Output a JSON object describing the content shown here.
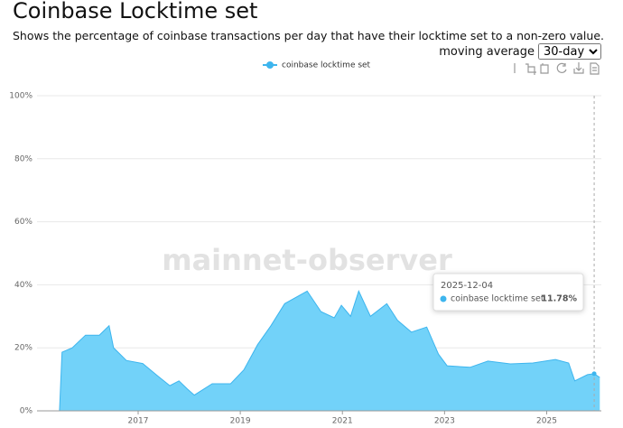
{
  "header": {
    "title": "Coinbase Locktime set",
    "subtitle": "Shows the percentage of coinbase transactions per day that have their locktime set to a non-zero value.",
    "moving_average_label": "moving average",
    "moving_average_value": "30-day"
  },
  "chart_data": {
    "type": "area",
    "watermark": "mainnet-observer",
    "x": [
      2015.02,
      2015.46,
      2015.51,
      2015.71,
      2015.97,
      2016.24,
      2016.43,
      2016.52,
      2016.77,
      2017.09,
      2017.39,
      2017.62,
      2017.8,
      2017.96,
      2018.1,
      2018.45,
      2018.81,
      2019.07,
      2019.34,
      2019.6,
      2019.87,
      2020.31,
      2020.58,
      2020.84,
      2020.98,
      2021.16,
      2021.32,
      2021.55,
      2021.87,
      2022.08,
      2022.35,
      2022.65,
      2022.88,
      2023.05,
      2023.5,
      2023.85,
      2024.29,
      2024.73,
      2025.17,
      2025.43,
      2025.55,
      2025.8,
      2025.93,
      2026.04
    ],
    "series": [
      {
        "name": "coinbase locktime set",
        "color": "#3db5ee",
        "fill": "#72d2f9",
        "values": [
          0,
          0,
          18.6,
          20,
          24,
          24,
          27,
          20,
          16,
          15,
          11,
          8,
          9.5,
          7,
          5,
          8.6,
          8.6,
          13,
          21,
          27,
          34,
          38,
          31.5,
          29.5,
          33.5,
          30,
          38,
          30,
          34,
          28.7,
          25,
          26.6,
          18,
          14.3,
          13.8,
          15.8,
          14.9,
          15.2,
          16.3,
          15.2,
          9.5,
          11.5,
          11.78,
          10.6
        ]
      }
    ],
    "xlim": [
      2015.02,
      2026.07
    ],
    "xticks": [
      2017,
      2019,
      2021,
      2023,
      2025
    ],
    "ylim": [
      0,
      100
    ],
    "yticks": [
      {
        "value": 0,
        "label": "0%"
      },
      {
        "value": 20,
        "label": "20%"
      },
      {
        "value": 40,
        "label": "40%"
      },
      {
        "value": 60,
        "label": "60%"
      },
      {
        "value": 80,
        "label": "80%"
      },
      {
        "value": 100,
        "label": "100%"
      }
    ],
    "grid": true,
    "tooltip": {
      "date": "2025-12-04",
      "x": 2025.93,
      "value": 11.78,
      "value_label": "11.78%"
    }
  }
}
